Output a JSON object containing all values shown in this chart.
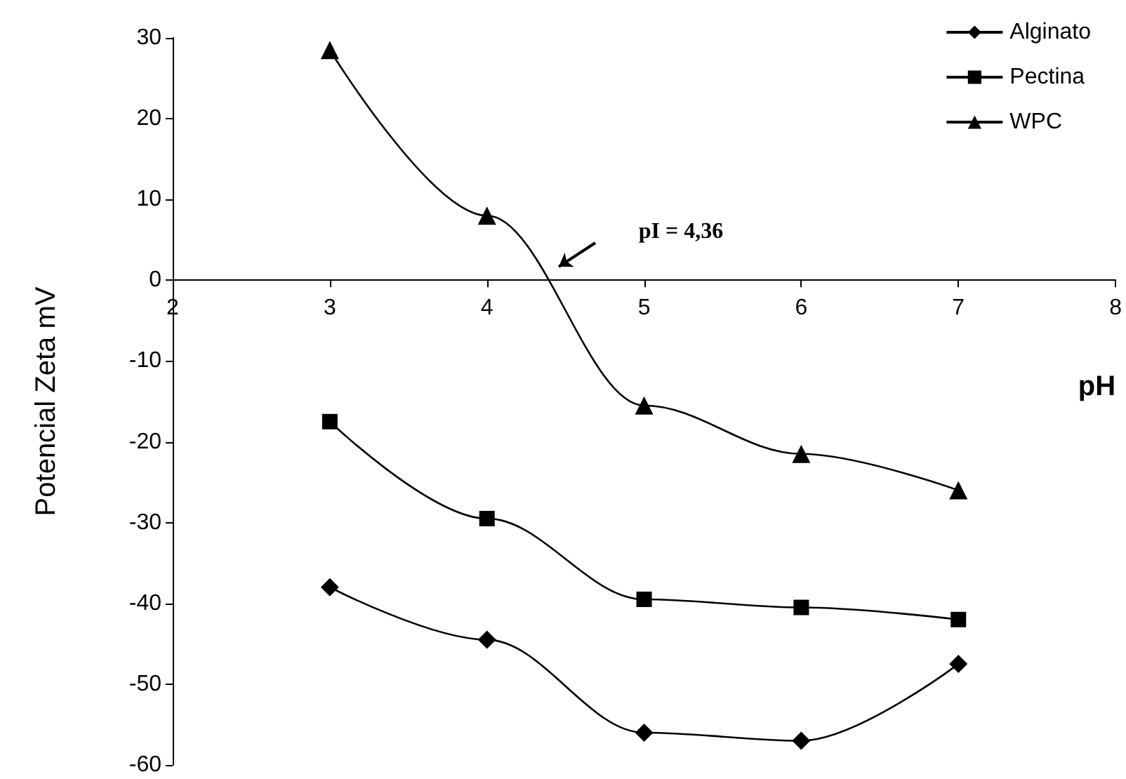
{
  "chart_data": {
    "type": "line",
    "xlabel": "pH",
    "ylabel": "Potencial Zeta mV",
    "x": [
      3,
      4,
      5,
      6,
      7
    ],
    "series": [
      {
        "name": "Alginato",
        "color": "#000000",
        "marker": "diamond",
        "values": [
          -38,
          -44.5,
          -56,
          -57,
          -47.5
        ]
      },
      {
        "name": "Pectina",
        "color": "#000000",
        "marker": "square",
        "values": [
          -17.5,
          -29.5,
          -39.5,
          -40.5,
          -42
        ]
      },
      {
        "name": "WPC",
        "color": "#000000",
        "marker": "triangle",
        "values": [
          28.5,
          8,
          -15.5,
          -21.5,
          -26
        ]
      }
    ],
    "xlim": [
      2,
      8
    ],
    "xticks": [
      2,
      3,
      4,
      5,
      6,
      7,
      8
    ],
    "ylim": [
      -60,
      30
    ],
    "yticks": [
      -60,
      -50,
      -40,
      -30,
      -20,
      -10,
      0,
      10,
      20,
      30
    ],
    "annotations": [
      "pI = 4,36"
    ],
    "grid": false,
    "legend": "top right",
    "line_style": "solid"
  }
}
